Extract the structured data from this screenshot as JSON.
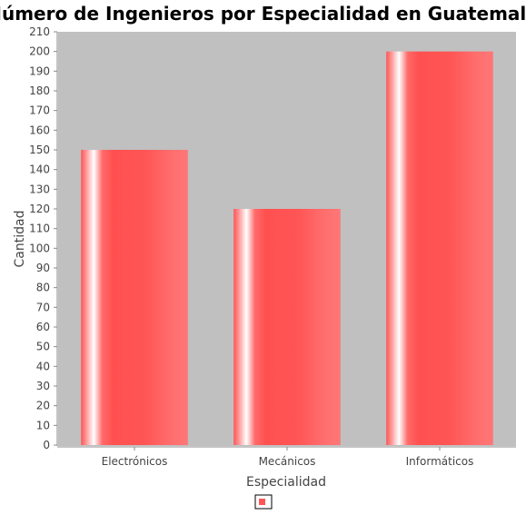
{
  "chart_data": {
    "type": "bar",
    "title": "Número de Ingenieros por Especialidad en Guatemala",
    "xlabel": "Especialidad",
    "ylabel": "Cantidad",
    "categories": [
      "Electrónicos",
      "Mecánicos",
      "Informáticos"
    ],
    "series": [
      {
        "values": [
          150,
          120,
          200
        ]
      }
    ],
    "ylim": [
      0,
      210
    ],
    "ytick_step": 10,
    "grid": false,
    "legend_placement": "bottom",
    "colors": {
      "bar": "#ff5555",
      "bar_highlight": "#ffffff",
      "plot_background": "#c0c0c0",
      "axis": "#888888"
    }
  }
}
